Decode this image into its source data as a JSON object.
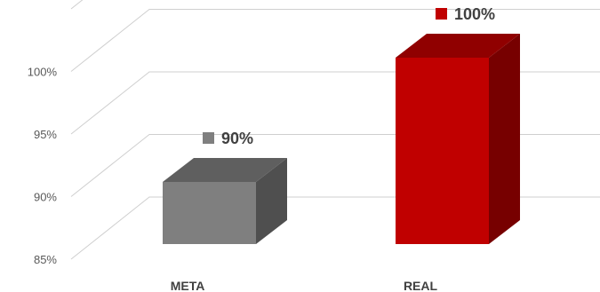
{
  "chart_data": {
    "type": "bar",
    "categories": [
      "META",
      "REAL"
    ],
    "values": [
      90,
      100
    ],
    "data_labels": [
      "90%",
      "100%"
    ],
    "colors": [
      "#7f7f7f",
      "#c00000"
    ],
    "y_tick_labels": [
      "85%",
      "90%",
      "95%",
      "100%"
    ],
    "ylim": [
      85,
      102.5
    ],
    "grid": true,
    "legend": "none",
    "three_d": true
  }
}
